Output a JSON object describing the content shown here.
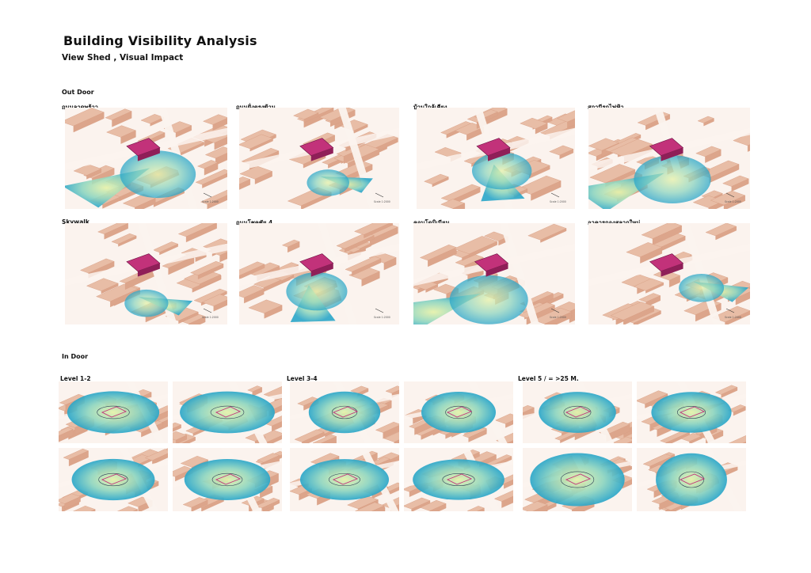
{
  "header": {
    "title": "Building Visibility Analysis",
    "subtitle": "View Shed , Visual Impact"
  },
  "sections": {
    "outdoor": "Out Door",
    "indoor": "In Door"
  },
  "outdoor_labels": [
    "ถนนลาดพร้าว",
    "ถนนฝั่งตรงข้าม",
    "บ้านใกล้เคียง",
    "สถานีรถไฟฟ้า",
    "Skywalk",
    "ถนนโชคชัย 4",
    "คอนโดมิเนียม",
    "อาคารกองสลากใหม่"
  ],
  "indoor_labels": [
    "Level 1-2",
    "Level 3-4",
    "Level 5 / = >25 M."
  ],
  "scale_text": "Scale 1:2000",
  "colors": {
    "building": "#e8bda6",
    "building_edge": "#d69c82",
    "road": "#fbf3ee",
    "target": "#c2327a",
    "viewshed_inner": "#e6f2a9",
    "viewshed_outer": "#2aa6c9"
  }
}
